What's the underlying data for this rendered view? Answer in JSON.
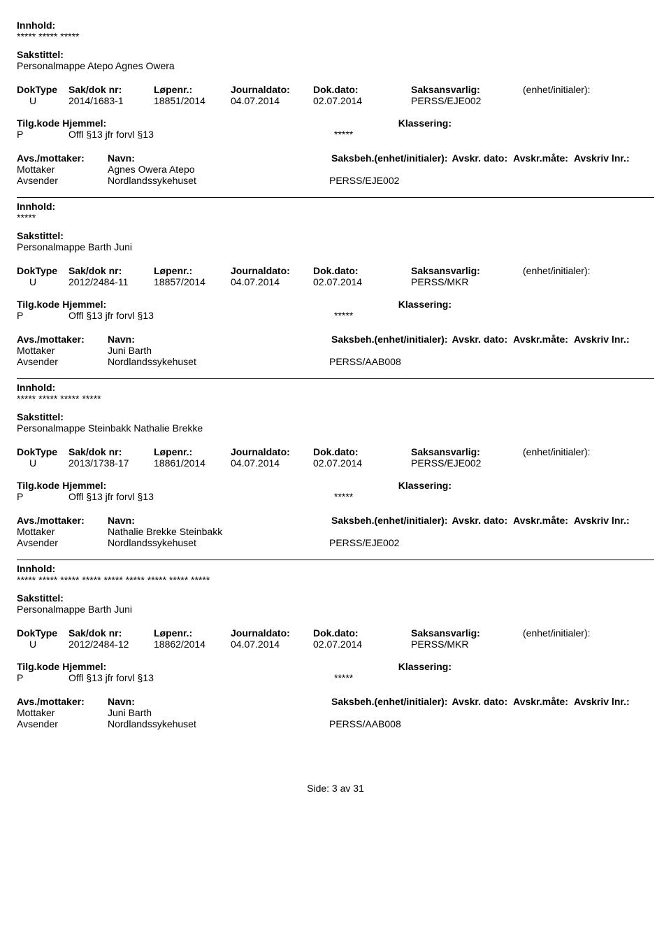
{
  "labels": {
    "innhold": "Innhold:",
    "sakstittel": "Sakstittel:",
    "doktype": "DokType",
    "saknr": "Sak/dok nr:",
    "lopenr": "Løpenr.:",
    "journaldato": "Journaldato:",
    "dokdato": "Dok.dato:",
    "saksansvarlig": "Saksansvarlig:",
    "enhet": "(enhet/initialer):",
    "tilgkode": "Tilg.kode",
    "hjemmel": "Hjemmel:",
    "klassering": "Klassering:",
    "avsmottaker": "Avs./mottaker:",
    "navn": "Navn:",
    "saksbeh": "Saksbeh.(enhet/initialer):",
    "avskrdato": "Avskr. dato:",
    "avskrmate": "Avskr.måte:",
    "avskrivlnr": "Avskriv lnr.:",
    "mottaker": "Mottaker",
    "avsender": "Avsender"
  },
  "footer": "Side: 3 av 31",
  "entries": [
    {
      "innhold": "***** ***** *****",
      "sakstittel": "Personalmappe Atepo Agnes Owera",
      "doktype": "U",
      "saknr": "2014/1683-1",
      "lopenr": "18851/2014",
      "journaldato": "04.07.2014",
      "dokdato": "02.07.2014",
      "saksansvarlig": "PERSS/EJE002",
      "tilgkode": "P",
      "hjemmel": "Offl §13 jfr forvl §13",
      "klassering_val": "*****",
      "mottaker_name": "Agnes Owera Atepo",
      "avsender_name": "Nordlandssykehuset",
      "avsender_code": "PERSS/EJE002"
    },
    {
      "innhold": "*****",
      "sakstittel": "Personalmappe Barth Juni",
      "doktype": "U",
      "saknr": "2012/2484-11",
      "lopenr": "18857/2014",
      "journaldato": "04.07.2014",
      "dokdato": "02.07.2014",
      "saksansvarlig": "PERSS/MKR",
      "tilgkode": "P",
      "hjemmel": "Offl §13 jfr forvl §13",
      "klassering_val": "*****",
      "mottaker_name": "Juni Barth",
      "avsender_name": "Nordlandssykehuset",
      "avsender_code": "PERSS/AAB008"
    },
    {
      "innhold": "***** ***** ***** *****",
      "sakstittel": "Personalmappe Steinbakk Nathalie Brekke",
      "doktype": "U",
      "saknr": "2013/1738-17",
      "lopenr": "18861/2014",
      "journaldato": "04.07.2014",
      "dokdato": "02.07.2014",
      "saksansvarlig": "PERSS/EJE002",
      "tilgkode": "P",
      "hjemmel": "Offl §13 jfr forvl §13",
      "klassering_val": "*****",
      "mottaker_name": "Nathalie Brekke Steinbakk",
      "avsender_name": "Nordlandssykehuset",
      "avsender_code": "PERSS/EJE002"
    },
    {
      "innhold": "***** ***** ***** ***** ***** ***** ***** ***** *****",
      "sakstittel": "Personalmappe Barth Juni",
      "doktype": "U",
      "saknr": "2012/2484-12",
      "lopenr": "18862/2014",
      "journaldato": "04.07.2014",
      "dokdato": "02.07.2014",
      "saksansvarlig": "PERSS/MKR",
      "tilgkode": "P",
      "hjemmel": "Offl §13 jfr forvl §13",
      "klassering_val": "*****",
      "mottaker_name": "Juni Barth",
      "avsender_name": "Nordlandssykehuset",
      "avsender_code": "PERSS/AAB008"
    }
  ]
}
